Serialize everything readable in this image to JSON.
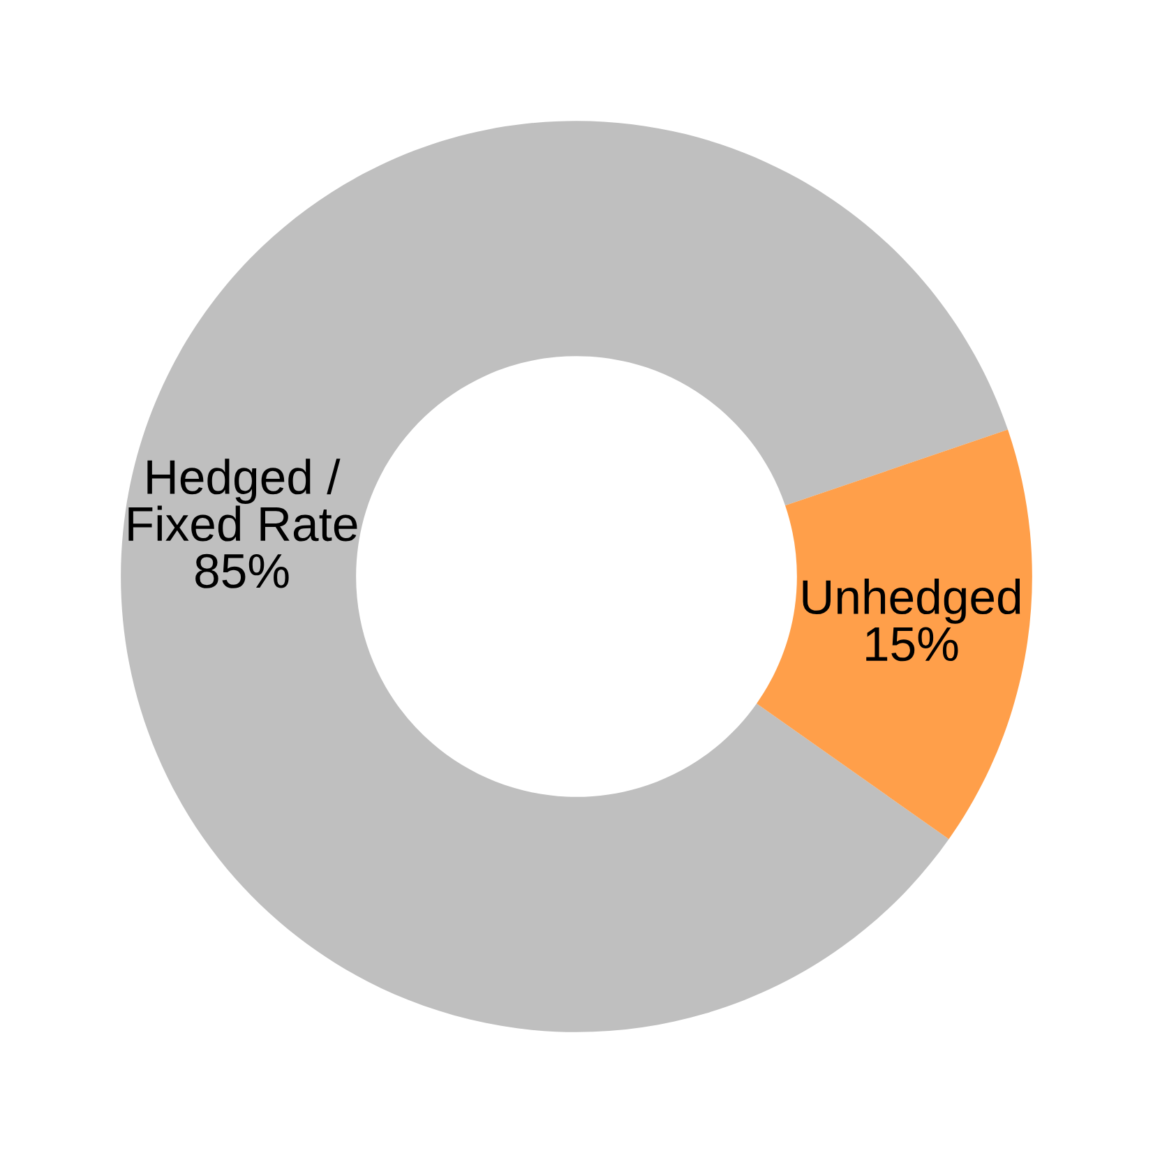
{
  "chart_data": {
    "type": "donut",
    "categories": [
      "Hedged /\nFixed Rate",
      "Unhedged"
    ],
    "values": [
      85,
      15
    ],
    "colors": [
      "#bfbfbf",
      "#ff9f4a"
    ],
    "value_labels": [
      "85%",
      "15%"
    ]
  }
}
